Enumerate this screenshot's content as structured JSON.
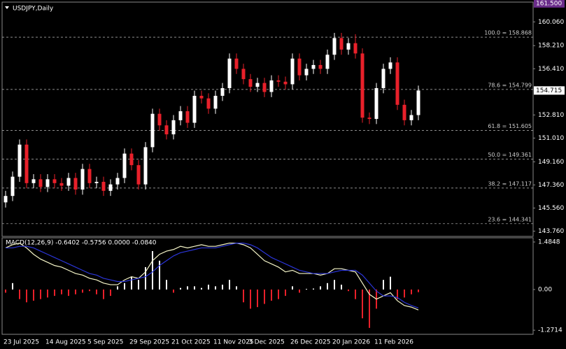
{
  "chart_data": [
    {
      "type": "candlestick",
      "title": "USDJPY,Daily",
      "categories": [
        "23 Jul 2025",
        null,
        null,
        null,
        null,
        null,
        "14 Aug 2025",
        null,
        null,
        null,
        null,
        null,
        "5 Sep 2025",
        null,
        null,
        null,
        null,
        null,
        "29 Sep 2025",
        null,
        null,
        null,
        null,
        null,
        "21 Oct 2025",
        null,
        null,
        null,
        null,
        null,
        "11 Nov 2025",
        null,
        null,
        null,
        null,
        "3 Dec 2025",
        null,
        null,
        null,
        null,
        null,
        "26 Dec 2025",
        null,
        null,
        null,
        null,
        null,
        "20 Jan 2026",
        null,
        null,
        null,
        null,
        null,
        "11 Feb 2026",
        null,
        null,
        null,
        null,
        null,
        null
      ],
      "open": [
        146.0,
        146.5,
        148.0,
        150.5,
        147.5,
        147.8,
        147.2,
        147.8,
        147.5,
        147.3,
        147.9,
        147.0,
        148.6,
        147.5,
        147.6,
        146.9,
        147.4,
        147.9,
        149.8,
        148.9,
        147.4,
        150.3,
        152.9,
        152.0,
        151.3,
        152.4,
        153.1,
        152.2,
        154.3,
        154.1,
        153.3,
        154.3,
        154.9,
        157.2,
        156.4,
        155.6,
        155.0,
        155.3,
        154.6,
        155.5,
        155.4,
        155.2,
        157.2,
        155.9,
        156.4,
        156.7,
        156.4,
        157.5,
        158.8,
        157.9,
        158.4,
        157.6,
        152.6,
        152.5,
        154.9,
        156.4,
        156.9,
        153.6,
        152.4,
        152.8
      ],
      "high": [
        146.9,
        148.4,
        150.9,
        150.9,
        148.2,
        148.2,
        148.2,
        148.2,
        147.9,
        148.3,
        148.3,
        149.0,
        149.0,
        148.0,
        148.0,
        147.8,
        148.3,
        150.2,
        150.2,
        149.3,
        150.7,
        153.3,
        153.3,
        152.4,
        152.8,
        153.5,
        153.5,
        154.7,
        154.7,
        154.5,
        154.7,
        155.3,
        157.6,
        157.6,
        156.8,
        156.0,
        155.7,
        155.7,
        155.9,
        155.9,
        155.8,
        157.6,
        157.6,
        156.8,
        157.1,
        157.1,
        157.9,
        159.2,
        159.2,
        158.8,
        159.1,
        158.0,
        153.0,
        155.3,
        156.8,
        157.3,
        157.3,
        154.0,
        153.2,
        155.1
      ],
      "low": [
        145.6,
        146.1,
        147.6,
        147.1,
        147.1,
        146.8,
        146.8,
        147.1,
        146.9,
        146.9,
        146.6,
        146.6,
        147.1,
        147.1,
        146.5,
        146.5,
        147.0,
        147.5,
        148.5,
        147.0,
        147.0,
        149.9,
        151.6,
        150.9,
        150.9,
        152.0,
        151.8,
        151.8,
        153.7,
        152.9,
        152.9,
        153.9,
        154.5,
        156.0,
        155.2,
        154.6,
        154.6,
        154.2,
        154.2,
        155.0,
        154.8,
        154.8,
        155.5,
        155.5,
        156.0,
        156.0,
        156.0,
        157.1,
        157.5,
        157.5,
        157.2,
        152.2,
        152.1,
        152.1,
        154.5,
        156.0,
        153.2,
        152.0,
        152.0,
        152.4
      ],
      "close": [
        146.5,
        148.0,
        150.5,
        147.5,
        147.8,
        147.2,
        147.8,
        147.5,
        147.3,
        147.9,
        147.0,
        148.6,
        147.5,
        147.6,
        146.9,
        147.4,
        147.9,
        149.8,
        148.9,
        147.4,
        150.3,
        152.9,
        152.0,
        151.3,
        152.4,
        153.1,
        152.2,
        154.3,
        154.1,
        153.3,
        154.3,
        154.9,
        157.2,
        156.4,
        155.6,
        155.0,
        155.3,
        154.6,
        155.5,
        155.4,
        155.2,
        157.2,
        155.9,
        156.4,
        156.7,
        156.4,
        157.5,
        158.8,
        157.9,
        158.4,
        157.6,
        152.6,
        152.5,
        154.9,
        156.4,
        156.9,
        153.6,
        152.4,
        152.8,
        154.715
      ],
      "up_color": "#ffffff",
      "down_color": "#e8202a",
      "ylim": [
        143.35,
        161.6
      ],
      "yticks": [
        {
          "value": 160.06,
          "label": "160.060"
        },
        {
          "value": 158.21,
          "label": "158.210"
        },
        {
          "value": 156.41,
          "label": "156.410"
        },
        {
          "value": 152.81,
          "label": "152.810"
        },
        {
          "value": 151.01,
          "label": "151.010"
        },
        {
          "value": 149.16,
          "label": "149.160"
        },
        {
          "value": 147.36,
          "label": "147.360"
        },
        {
          "value": 145.56,
          "label": "145.560"
        },
        {
          "value": 143.76,
          "label": "143.760"
        }
      ],
      "top_marker": {
        "value": 161.5,
        "label": "161.500"
      },
      "current_price": {
        "value": 154.715,
        "label": "154.715"
      },
      "fib_levels": [
        {
          "value": 158.868,
          "label": "100.0 = 158.868"
        },
        {
          "value": 154.799,
          "label": "78.6 = 154.799"
        },
        {
          "value": 151.605,
          "label": "61.8 = 151.605"
        },
        {
          "value": 149.361,
          "label": "50.0 = 149.361"
        },
        {
          "value": 147.117,
          "label": "38.2 = 147.117"
        },
        {
          "value": 144.341,
          "label": "23.6 = 144.341"
        }
      ]
    },
    {
      "type": "macd",
      "title": "MACD(12,26,9) -0.6402 -0.5756 0.0000 -0.0840",
      "series": [
        {
          "name": "main",
          "color": "#f5f5c8",
          "values": [
            1.3,
            1.4,
            1.45,
            1.3,
            1.1,
            0.95,
            0.85,
            0.75,
            0.7,
            0.6,
            0.5,
            0.45,
            0.35,
            0.3,
            0.2,
            0.15,
            0.15,
            0.3,
            0.4,
            0.35,
            0.55,
            0.9,
            1.1,
            1.2,
            1.25,
            1.35,
            1.3,
            1.35,
            1.4,
            1.35,
            1.35,
            1.4,
            1.45,
            1.45,
            1.4,
            1.3,
            1.1,
            0.9,
            0.8,
            0.7,
            0.55,
            0.6,
            0.5,
            0.5,
            0.5,
            0.45,
            0.5,
            0.65,
            0.65,
            0.6,
            0.55,
            0.2,
            -0.15,
            -0.3,
            -0.2,
            -0.1,
            -0.35,
            -0.5,
            -0.55,
            -0.6402
          ]
        },
        {
          "name": "signal",
          "color": "#2b35d8",
          "values": [
            1.3,
            1.3,
            1.35,
            1.35,
            1.3,
            1.2,
            1.1,
            1.0,
            0.9,
            0.8,
            0.7,
            0.6,
            0.5,
            0.45,
            0.35,
            0.3,
            0.25,
            0.25,
            0.3,
            0.35,
            0.4,
            0.55,
            0.75,
            0.9,
            1.05,
            1.15,
            1.2,
            1.25,
            1.3,
            1.3,
            1.3,
            1.35,
            1.4,
            1.45,
            1.45,
            1.4,
            1.3,
            1.15,
            1.0,
            0.9,
            0.8,
            0.7,
            0.6,
            0.55,
            0.5,
            0.5,
            0.5,
            0.55,
            0.6,
            0.6,
            0.6,
            0.45,
            0.2,
            -0.05,
            -0.2,
            -0.2,
            -0.25,
            -0.4,
            -0.5,
            -0.5756
          ]
        },
        {
          "name": "histogram",
          "color": "#ffffff",
          "negative_color": "#e8202a",
          "values": [
            -0.1,
            0.2,
            -0.3,
            -0.4,
            -0.35,
            -0.3,
            -0.25,
            -0.2,
            -0.15,
            -0.2,
            -0.15,
            -0.1,
            -0.05,
            -0.15,
            -0.3,
            -0.2,
            0.1,
            0.2,
            0.4,
            0.3,
            0.7,
            1.2,
            0.9,
            0.3,
            -0.1,
            0.05,
            0.1,
            0.1,
            0.05,
            0.15,
            0.1,
            0.15,
            0.3,
            0.1,
            -0.4,
            -0.6,
            -0.55,
            -0.45,
            -0.35,
            -0.3,
            -0.2,
            0.1,
            -0.1,
            0.02,
            0.03,
            0.1,
            0.2,
            0.3,
            0.15,
            -0.05,
            -0.3,
            -0.9,
            -1.2,
            -0.6,
            0.3,
            0.4,
            -0.3,
            -0.25,
            -0.15,
            -0.084
          ]
        }
      ],
      "ylim": [
        -1.4,
        1.616
      ],
      "yticks": [
        1.4848,
        {
          "value": 0,
          "label": "0.00"
        },
        -1.2714
      ]
    }
  ]
}
